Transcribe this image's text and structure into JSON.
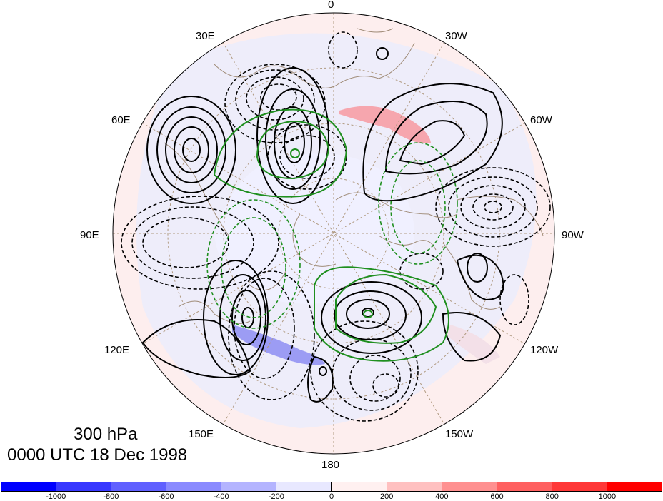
{
  "title": {
    "level": "300 hPa",
    "time": "0000 UTC 18 Dec 1998"
  },
  "longitude_labels": {
    "lon_0": "0",
    "lon_30w": "30W",
    "lon_60w": "60W",
    "lon_90w": "90W",
    "lon_120w": "120W",
    "lon_150w": "150W",
    "lon_180": "180",
    "lon_150e": "150E",
    "lon_120e": "120E",
    "lon_90e": "90E",
    "lon_60e": "60E",
    "lon_30e": "30E"
  },
  "colorbar": {
    "colors": [
      "#0000ff",
      "#3838ff",
      "#6060ff",
      "#8a8aff",
      "#b4b4ff",
      "#e8e8ff",
      "#fff0f0",
      "#ffc0c0",
      "#ff9090",
      "#ff6060",
      "#ff3838",
      "#ff0000"
    ],
    "tick_labels": [
      "-1000",
      "-800",
      "-600",
      "-400",
      "-200",
      "0",
      "200",
      "400",
      "600",
      "800",
      "1000"
    ]
  },
  "colors": {
    "positive_contour": "#000000",
    "negative_contour": "#000000",
    "green_contour": "#1f8f1f",
    "coastline": "#a08c78",
    "grid": "#b09a80"
  }
}
